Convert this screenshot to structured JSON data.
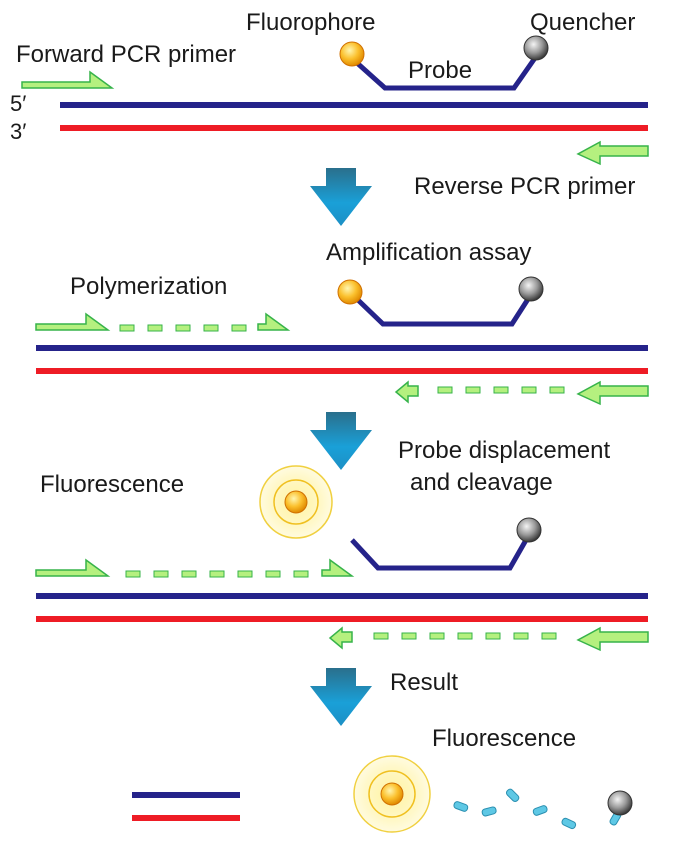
{
  "labels": {
    "fluorophore": "Fluorophore",
    "quencher": "Quencher",
    "forward_primer": "Forward PCR primer",
    "probe": "Probe",
    "five_prime": "5′",
    "three_prime": "3′",
    "reverse_primer": "Reverse PCR primer",
    "amplification": "Amplification assay",
    "polymerization": "Polymerization",
    "probe_displacement_1": "Probe displacement",
    "probe_displacement_2": "and cleavage",
    "fluorescence_1": "Fluorescence",
    "result": "Result",
    "fluorescence_2": "Fluorescence"
  },
  "colors": {
    "forward_strand": "#25238a",
    "reverse_strand": "#ee1c25",
    "primer_fill": "#b5f07f",
    "primer_stroke": "#37b34a",
    "probe_line": "#25238a",
    "fluorophore": "#f7a81b",
    "quencher": "#777777",
    "arrow": "#1c8fc4",
    "glow": "#fff6b0",
    "fragment": "#5ec8e5"
  },
  "icons": {
    "step_arrow": "down-arrow-icon",
    "fluorophore": "fluorophore-icon",
    "quencher": "quencher-icon",
    "glow": "fluorescence-glow-icon"
  }
}
